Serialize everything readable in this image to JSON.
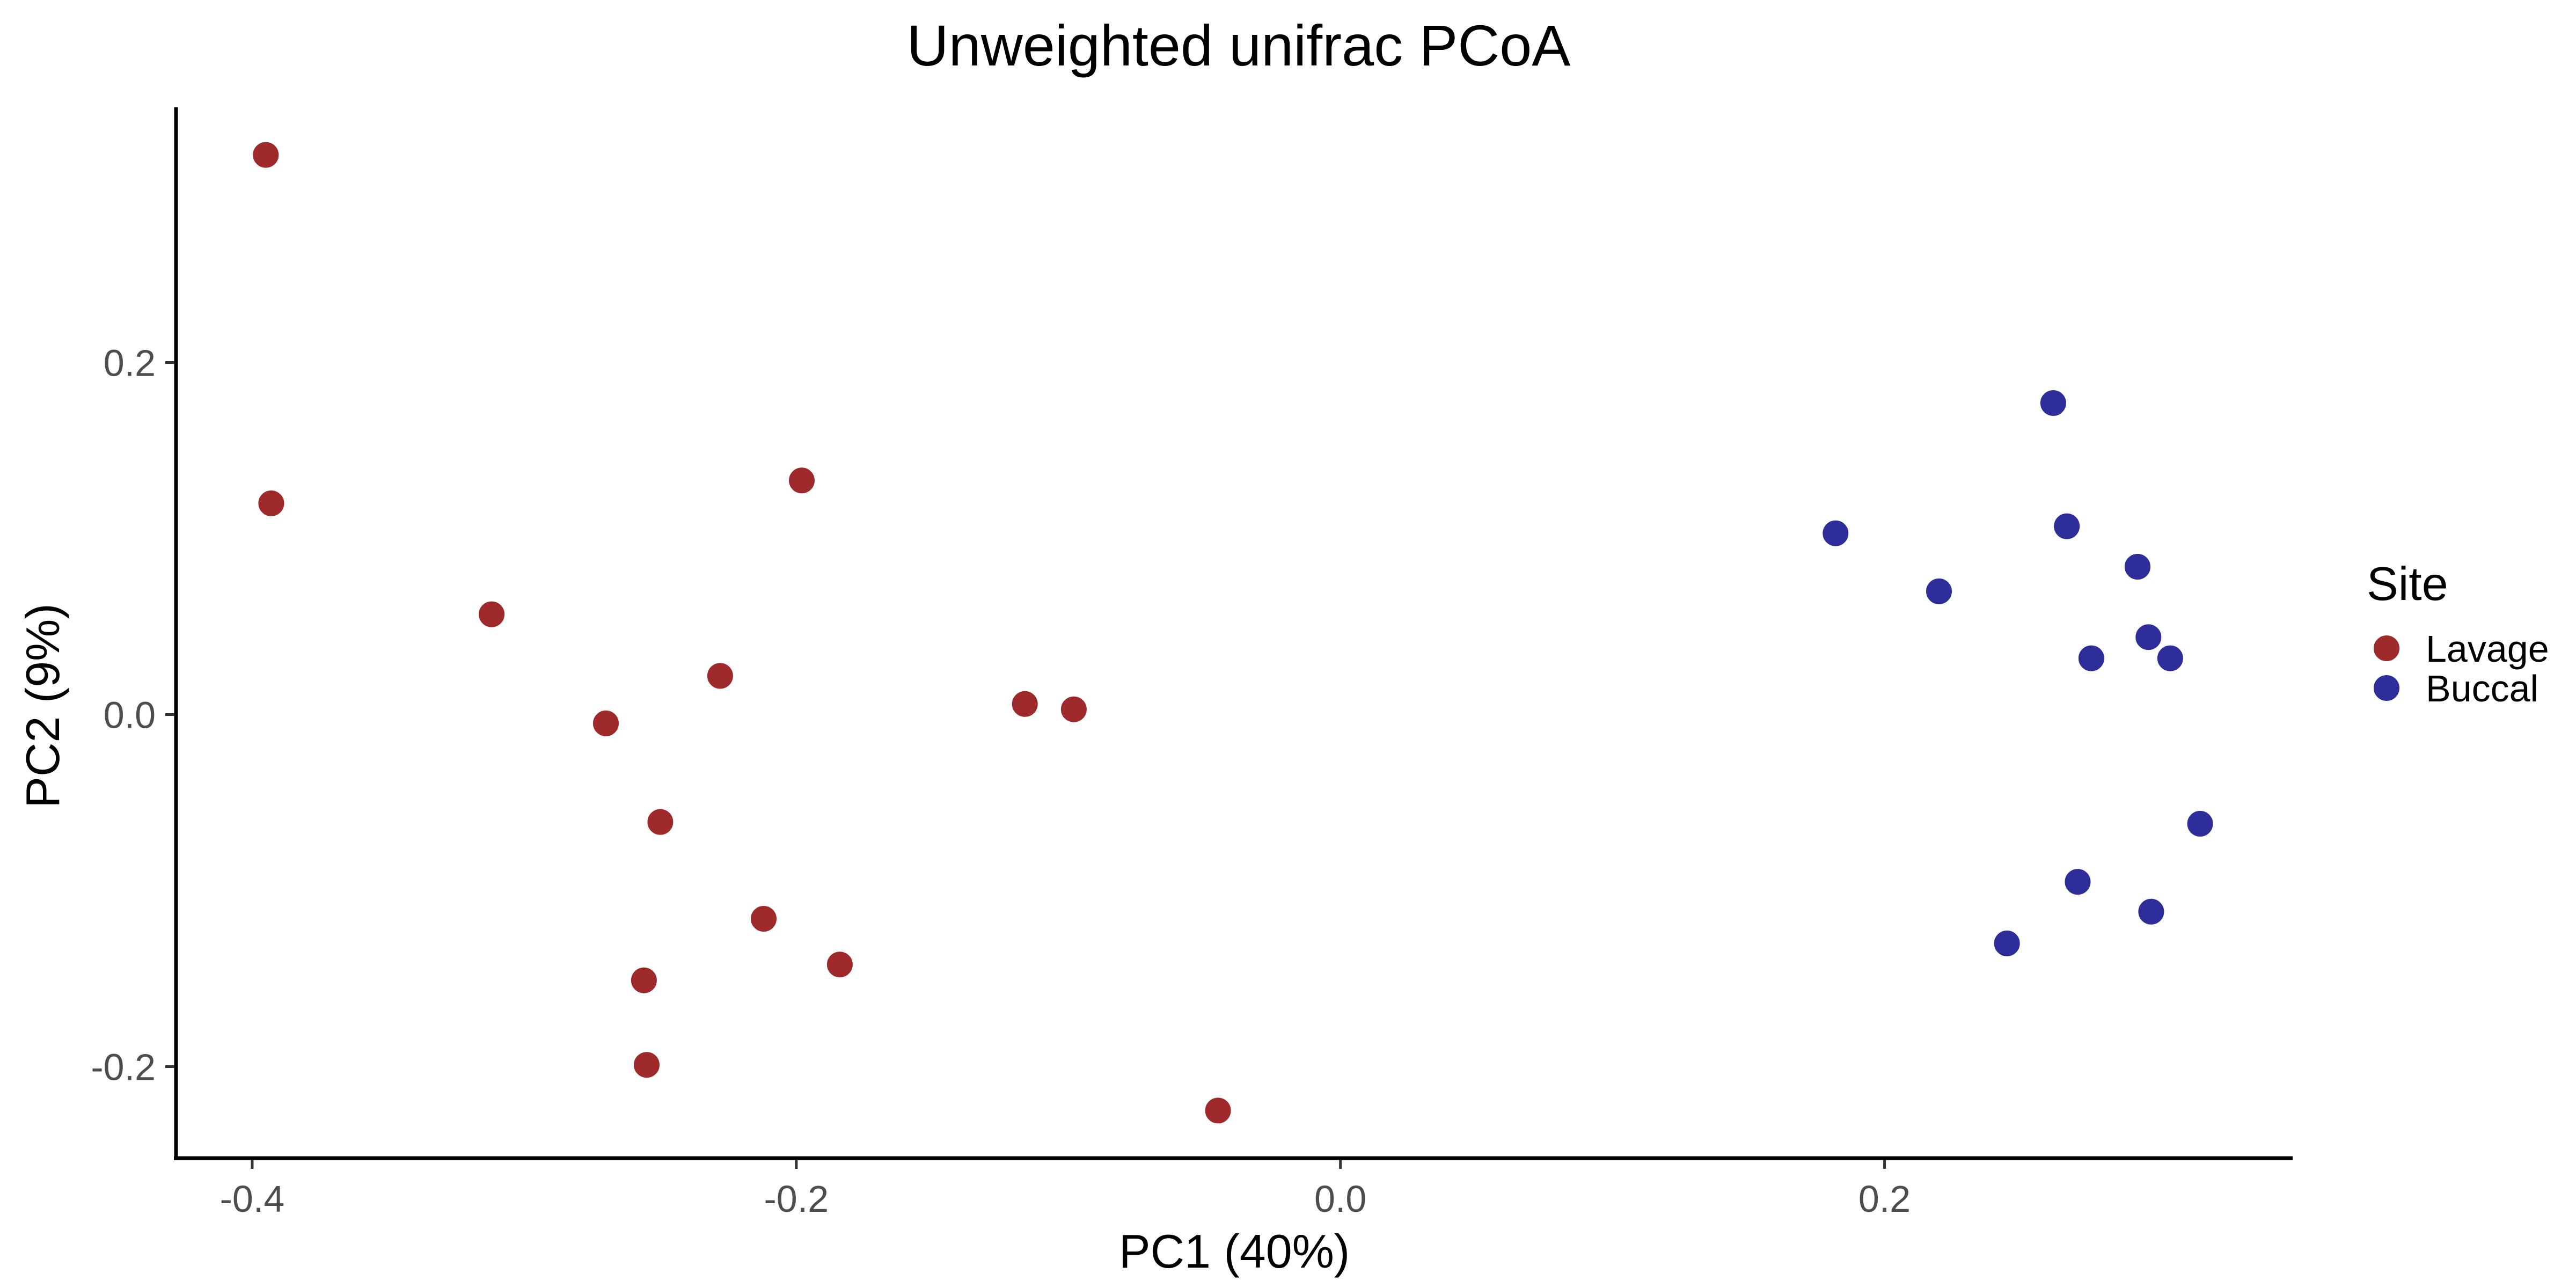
{
  "chart_data": {
    "type": "scatter",
    "title": "Unweighted unifrac PCoA",
    "xlabel": "PC1 (40%)",
    "ylabel": "PC2 (9%)",
    "xlim": [
      -0.428,
      0.35
    ],
    "ylim": [
      -0.252,
      0.345
    ],
    "x_ticks": [
      {
        "value": -0.4,
        "label": "-0.4"
      },
      {
        "value": -0.2,
        "label": "-0.2"
      },
      {
        "value": 0.0,
        "label": "0.0"
      },
      {
        "value": 0.2,
        "label": "0.2"
      }
    ],
    "y_ticks": [
      {
        "value": -0.2,
        "label": "-0.2"
      },
      {
        "value": 0.0,
        "label": "0.0"
      },
      {
        "value": 0.2,
        "label": "0.2"
      }
    ],
    "grid": false,
    "legend": {
      "title": "Site",
      "position": "right"
    },
    "series": [
      {
        "name": "Lavage",
        "color": "#9e2a2b",
        "points": [
          {
            "x": -0.395,
            "y": 0.318
          },
          {
            "x": -0.393,
            "y": 0.12
          },
          {
            "x": -0.312,
            "y": 0.057
          },
          {
            "x": -0.27,
            "y": -0.005
          },
          {
            "x": -0.25,
            "y": -0.061
          },
          {
            "x": -0.256,
            "y": -0.151
          },
          {
            "x": -0.255,
            "y": -0.199
          },
          {
            "x": -0.228,
            "y": 0.022
          },
          {
            "x": -0.212,
            "y": -0.116
          },
          {
            "x": -0.198,
            "y": 0.133
          },
          {
            "x": -0.184,
            "y": -0.142
          },
          {
            "x": -0.116,
            "y": 0.006
          },
          {
            "x": -0.098,
            "y": 0.003
          },
          {
            "x": -0.045,
            "y": -0.225
          }
        ]
      },
      {
        "name": "Buccal",
        "color": "#2e2e9a",
        "points": [
          {
            "x": 0.182,
            "y": 0.103
          },
          {
            "x": 0.22,
            "y": 0.07
          },
          {
            "x": 0.245,
            "y": -0.13
          },
          {
            "x": 0.262,
            "y": 0.177
          },
          {
            "x": 0.267,
            "y": 0.107
          },
          {
            "x": 0.271,
            "y": -0.095
          },
          {
            "x": 0.276,
            "y": 0.032
          },
          {
            "x": 0.293,
            "y": 0.084
          },
          {
            "x": 0.297,
            "y": 0.044
          },
          {
            "x": 0.298,
            "y": -0.112
          },
          {
            "x": 0.305,
            "y": 0.032
          },
          {
            "x": 0.316,
            "y": -0.062
          }
        ]
      }
    ]
  }
}
